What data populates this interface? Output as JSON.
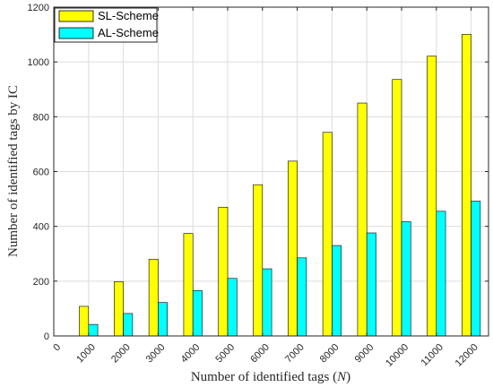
{
  "chart_data": {
    "type": "bar",
    "categories": [
      "0",
      "1000",
      "2000",
      "3000",
      "4000",
      "5000",
      "6000",
      "7000",
      "8000",
      "9000",
      "10000",
      "11000",
      "12000"
    ],
    "series": [
      {
        "name": "SL-Scheme",
        "color": "#ffff00",
        "values": [
          null,
          108,
          198,
          280,
          374,
          470,
          552,
          638,
          743,
          850,
          936,
          1021,
          1101
        ]
      },
      {
        "name": "AL-Scheme",
        "color": "#00ffff",
        "values": [
          null,
          42,
          82,
          122,
          166,
          210,
          245,
          285,
          330,
          376,
          417,
          455,
          492
        ]
      }
    ],
    "xlabel_text": "Number of identified tags (",
    "xlabel_var": "N",
    "xlabel_close": ")",
    "ylabel": "Number of identified tags by IC",
    "ylim": [
      0,
      1200
    ],
    "yticks": [
      0,
      200,
      400,
      600,
      800,
      1000,
      1200
    ],
    "grid": true,
    "legend_position": "top-left"
  }
}
